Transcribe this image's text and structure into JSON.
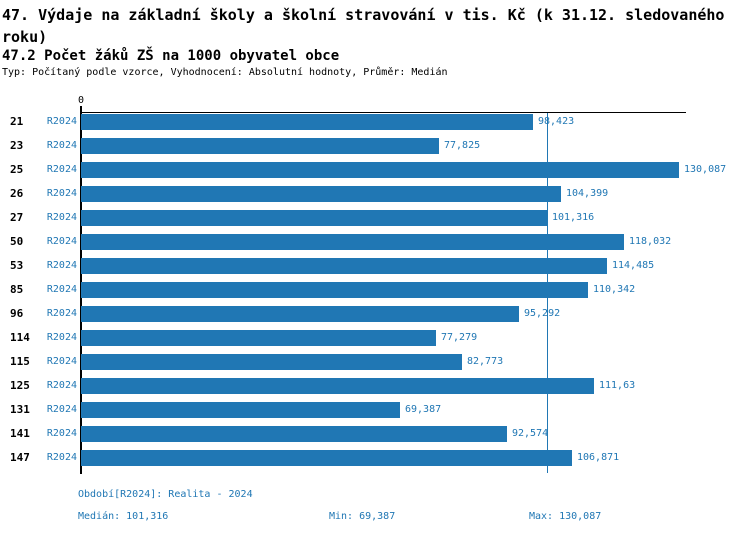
{
  "header": {
    "title": "47. Výdaje na základní školy a školní stravování v tis. Kč (k 31.12. sledovaného roku)",
    "subtitle": "47.2 Počet žáků ZŠ na 1000 obyvatel obce",
    "meta": "Typ: Počítaný podle vzorce, Vyhodnocení: Absolutní hodnoty, Průměr: Medián"
  },
  "chart_data": {
    "type": "bar",
    "orientation": "horizontal",
    "title": "47.2 Počet žáků ZŠ na 1000 obyvatel obce",
    "categories": [
      "21",
      "23",
      "25",
      "26",
      "27",
      "50",
      "53",
      "85",
      "96",
      "114",
      "115",
      "125",
      "131",
      "141",
      "147"
    ],
    "series": [
      {
        "name": "R2024",
        "values": [
          98.423,
          77.825,
          130.087,
          104.399,
          101.316,
          118.032,
          114.485,
          110.342,
          95.292,
          77.279,
          82.773,
          111.63,
          69.387,
          92.574,
          106.871
        ],
        "value_labels": [
          "98,423",
          "77,825",
          "130,087",
          "104,399",
          "101,316",
          "118,032",
          "114,485",
          "110,342",
          "95,292",
          "77,279",
          "82,773",
          "111,63",
          "69,387",
          "92,574",
          "106,871"
        ]
      }
    ],
    "xlim": [
      0,
      131.6
    ],
    "zero_tick_label": "0",
    "median_value": 101.316,
    "grid": false,
    "legend_position": "none",
    "bar_color": "#2077b4",
    "median_line_color": "#2077b4"
  },
  "footer": {
    "period": "Období[R2024]: Realita - 2024",
    "median": "Medián: 101,316",
    "min": "Min: 69,387",
    "max": "Max: 130,087"
  },
  "colors": {
    "accent": "#2077b4",
    "text": "#000000",
    "background": "#ffffff"
  }
}
